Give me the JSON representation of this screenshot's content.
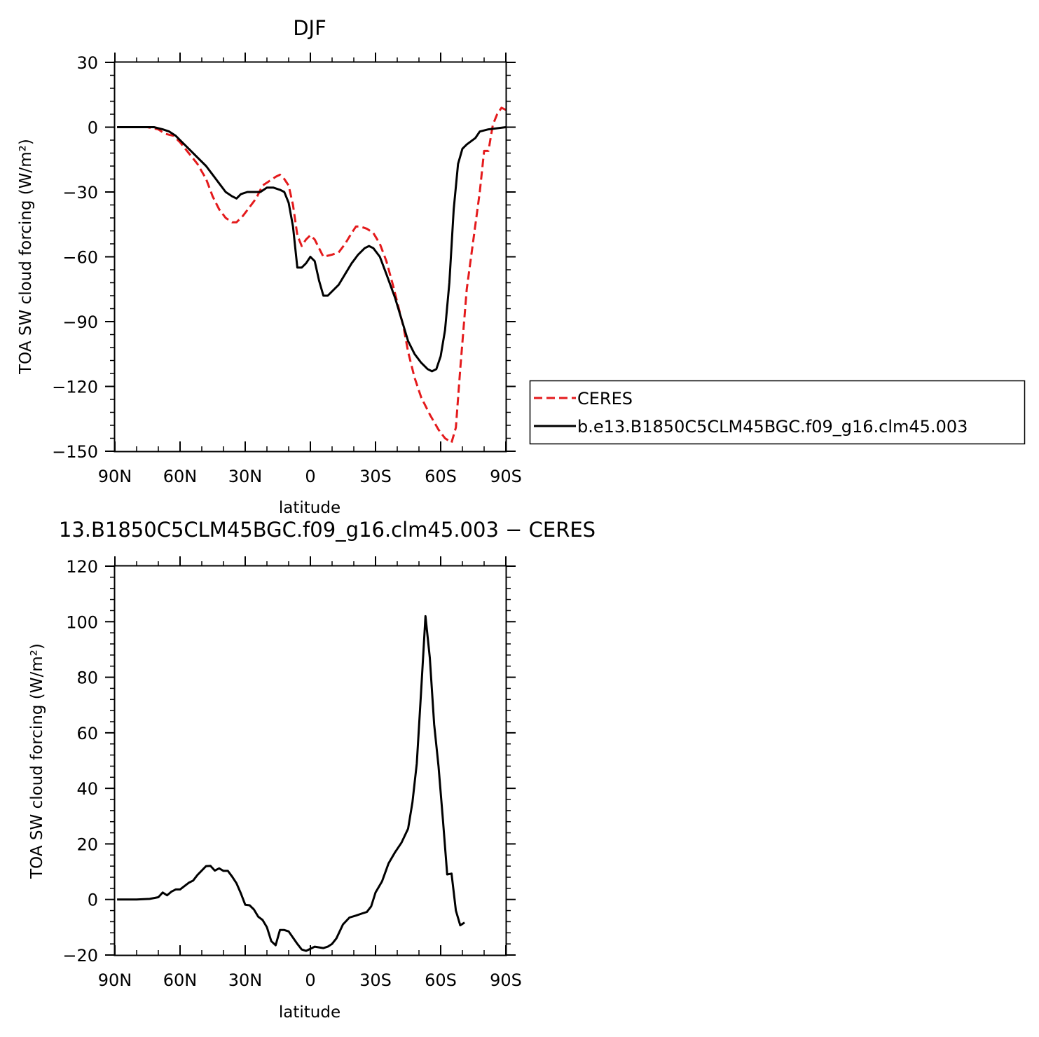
{
  "chart_data": [
    {
      "type": "line",
      "title": "DJF",
      "xlabel": "latitude",
      "ylabel": "TOA SW cloud forcing (W/m²)",
      "xlim": [
        -90,
        90
      ],
      "ylim": [
        -150,
        30
      ],
      "xticks": [
        {
          "value": -90,
          "label": "90N"
        },
        {
          "value": -60,
          "label": "60N"
        },
        {
          "value": -30,
          "label": "30N"
        },
        {
          "value": 0,
          "label": "0"
        },
        {
          "value": 30,
          "label": "30S"
        },
        {
          "value": 60,
          "label": "60S"
        },
        {
          "value": 90,
          "label": "90S"
        }
      ],
      "yticks": [
        {
          "value": 30,
          "label": "30"
        },
        {
          "value": 0,
          "label": "0"
        },
        {
          "value": -30,
          "label": "−30"
        },
        {
          "value": -60,
          "label": "−60"
        },
        {
          "value": -90,
          "label": "−90"
        },
        {
          "value": -120,
          "label": "−120"
        },
        {
          "value": -150,
          "label": "−150"
        }
      ],
      "legend": {
        "placement": "right"
      },
      "series": [
        {
          "name": "CERES",
          "color": "#e41a1c",
          "dash": "dashed",
          "points": [
            [
              -89,
              0
            ],
            [
              -80,
              0
            ],
            [
              -75,
              0
            ],
            [
              -70,
              -1
            ],
            [
              -67,
              -3
            ],
            [
              -63,
              -4
            ],
            [
              -60,
              -7
            ],
            [
              -56,
              -12
            ],
            [
              -52,
              -17
            ],
            [
              -48,
              -24
            ],
            [
              -45,
              -32
            ],
            [
              -42,
              -38
            ],
            [
              -39,
              -42
            ],
            [
              -36,
              -44
            ],
            [
              -34,
              -44
            ],
            [
              -31,
              -41
            ],
            [
              -28,
              -37
            ],
            [
              -25,
              -33
            ],
            [
              -22,
              -27
            ],
            [
              -19,
              -25
            ],
            [
              -16,
              -23
            ],
            [
              -14,
              -22
            ],
            [
              -12,
              -24
            ],
            [
              -10,
              -27
            ],
            [
              -8,
              -36
            ],
            [
              -6,
              -50
            ],
            [
              -4,
              -55
            ],
            [
              -2,
              -52
            ],
            [
              0,
              -50
            ],
            [
              2,
              -52
            ],
            [
              4,
              -56
            ],
            [
              6,
              -60
            ],
            [
              10,
              -59
            ],
            [
              13,
              -58
            ],
            [
              16,
              -54
            ],
            [
              19,
              -49
            ],
            [
              21,
              -46
            ],
            [
              23,
              -46
            ],
            [
              26,
              -47
            ],
            [
              29,
              -49
            ],
            [
              32,
              -54
            ],
            [
              35,
              -62
            ],
            [
              38,
              -73
            ],
            [
              41,
              -85
            ],
            [
              43,
              -93
            ],
            [
              45,
              -104
            ],
            [
              48,
              -116
            ],
            [
              51,
              -125
            ],
            [
              55,
              -133
            ],
            [
              59,
              -140
            ],
            [
              62,
              -144
            ],
            [
              65,
              -146
            ],
            [
              67,
              -139
            ],
            [
              69,
              -112
            ],
            [
              72,
              -75
            ],
            [
              74,
              -60
            ],
            [
              76,
              -45
            ],
            [
              78,
              -30
            ],
            [
              80,
              -11
            ],
            [
              82,
              -11
            ],
            [
              84,
              1
            ],
            [
              86,
              6
            ],
            [
              88,
              9
            ],
            [
              90,
              8
            ]
          ]
        },
        {
          "name": "b.e13.B1850C5CLM45BGC.f09_g16.clm45.003",
          "color": "#000000",
          "dash": "solid",
          "points": [
            [
              -89,
              0
            ],
            [
              -80,
              0
            ],
            [
              -72,
              0
            ],
            [
              -68,
              -1
            ],
            [
              -65,
              -2
            ],
            [
              -62,
              -4
            ],
            [
              -60,
              -6
            ],
            [
              -56,
              -10
            ],
            [
              -52,
              -14
            ],
            [
              -48,
              -18
            ],
            [
              -45,
              -22
            ],
            [
              -42,
              -26
            ],
            [
              -39,
              -30
            ],
            [
              -36,
              -32
            ],
            [
              -34,
              -33
            ],
            [
              -32,
              -31
            ],
            [
              -29,
              -30
            ],
            [
              -26,
              -30
            ],
            [
              -23,
              -30
            ],
            [
              -20,
              -28
            ],
            [
              -17,
              -28
            ],
            [
              -14,
              -29
            ],
            [
              -12,
              -30
            ],
            [
              -10,
              -35
            ],
            [
              -8,
              -46
            ],
            [
              -6,
              -65
            ],
            [
              -4,
              -65
            ],
            [
              -2,
              -63
            ],
            [
              0,
              -60
            ],
            [
              2,
              -62
            ],
            [
              4,
              -71
            ],
            [
              6,
              -78
            ],
            [
              8,
              -78
            ],
            [
              10,
              -76
            ],
            [
              13,
              -73
            ],
            [
              16,
              -68
            ],
            [
              19,
              -63
            ],
            [
              22,
              -59
            ],
            [
              25,
              -56
            ],
            [
              27,
              -55
            ],
            [
              29,
              -56
            ],
            [
              32,
              -60
            ],
            [
              35,
              -68
            ],
            [
              39,
              -79
            ],
            [
              42,
              -89
            ],
            [
              45,
              -99
            ],
            [
              48,
              -105
            ],
            [
              51,
              -109
            ],
            [
              54,
              -112
            ],
            [
              56,
              -113
            ],
            [
              58,
              -112
            ],
            [
              60,
              -106
            ],
            [
              62,
              -94
            ],
            [
              64,
              -72
            ],
            [
              66,
              -38
            ],
            [
              68,
              -17
            ],
            [
              70,
              -10
            ],
            [
              72,
              -8
            ],
            [
              76,
              -5
            ],
            [
              78,
              -2
            ],
            [
              82,
              -1
            ],
            [
              90,
              0
            ]
          ]
        }
      ]
    },
    {
      "type": "line",
      "title": "13.B1850C5CLM45BGC.f09_g16.clm45.003 − CERES",
      "xlabel": "latitude",
      "ylabel": "TOA SW cloud forcing (W/m²)",
      "xlim": [
        -90,
        90
      ],
      "ylim": [
        -20,
        120
      ],
      "xticks": [
        {
          "value": -90,
          "label": "90N"
        },
        {
          "value": -60,
          "label": "60N"
        },
        {
          "value": -30,
          "label": "30N"
        },
        {
          "value": 0,
          "label": "0"
        },
        {
          "value": 30,
          "label": "30S"
        },
        {
          "value": 60,
          "label": "60S"
        },
        {
          "value": 90,
          "label": "90S"
        }
      ],
      "yticks": [
        {
          "value": 120,
          "label": "120"
        },
        {
          "value": 100,
          "label": "100"
        },
        {
          "value": 80,
          "label": "80"
        },
        {
          "value": 60,
          "label": "60"
        },
        {
          "value": 40,
          "label": "40"
        },
        {
          "value": 20,
          "label": "20"
        },
        {
          "value": 0,
          "label": "0"
        },
        {
          "value": -20,
          "label": "−20"
        }
      ],
      "series": [
        {
          "color": "#000000",
          "dash": "solid",
          "points": [
            [
              -89,
              0
            ],
            [
              -80,
              0
            ],
            [
              -74,
              0.2
            ],
            [
              -70,
              0.8
            ],
            [
              -68,
              2.5
            ],
            [
              -66,
              1.5
            ],
            [
              -64,
              2.8
            ],
            [
              -62,
              3.6
            ],
            [
              -60,
              3.6
            ],
            [
              -58,
              4.8
            ],
            [
              -56,
              6.0
            ],
            [
              -54,
              6.8
            ],
            [
              -52,
              8.8
            ],
            [
              -48,
              12.0
            ],
            [
              -46,
              12.1
            ],
            [
              -44,
              10.4
            ],
            [
              -42,
              11.2
            ],
            [
              -40,
              10.3
            ],
            [
              -38,
              10.3
            ],
            [
              -36,
              8.2
            ],
            [
              -34,
              5.8
            ],
            [
              -32,
              2.2
            ],
            [
              -30,
              -1.9
            ],
            [
              -28,
              -2.1
            ],
            [
              -26,
              -3.6
            ],
            [
              -24,
              -6.2
            ],
            [
              -22,
              -7.4
            ],
            [
              -20,
              -10
            ],
            [
              -18,
              -15
            ],
            [
              -16,
              -16.5
            ],
            [
              -14,
              -11
            ],
            [
              -12,
              -11
            ],
            [
              -10,
              -11.5
            ],
            [
              -6,
              -16
            ],
            [
              -4,
              -18
            ],
            [
              -2,
              -18.5
            ],
            [
              2,
              -17
            ],
            [
              6,
              -17.5
            ],
            [
              8,
              -17
            ],
            [
              10,
              -16
            ],
            [
              12,
              -14
            ],
            [
              15,
              -9
            ],
            [
              18,
              -6.5
            ],
            [
              21,
              -5.8
            ],
            [
              24,
              -5
            ],
            [
              26,
              -4.5
            ],
            [
              28,
              -2.5
            ],
            [
              30,
              2.5
            ],
            [
              33,
              6.5
            ],
            [
              36,
              13
            ],
            [
              39,
              17
            ],
            [
              42,
              20.5
            ],
            [
              45,
              25.5
            ],
            [
              47,
              35
            ],
            [
              49,
              49
            ],
            [
              51,
              75
            ],
            [
              53,
              102
            ],
            [
              55,
              87
            ],
            [
              57,
              63
            ],
            [
              59,
              48
            ],
            [
              61,
              29
            ],
            [
              63,
              9
            ],
            [
              65,
              9.3
            ],
            [
              67,
              -4
            ],
            [
              69,
              -9.3
            ],
            [
              71,
              -8.3
            ]
          ]
        }
      ]
    }
  ]
}
